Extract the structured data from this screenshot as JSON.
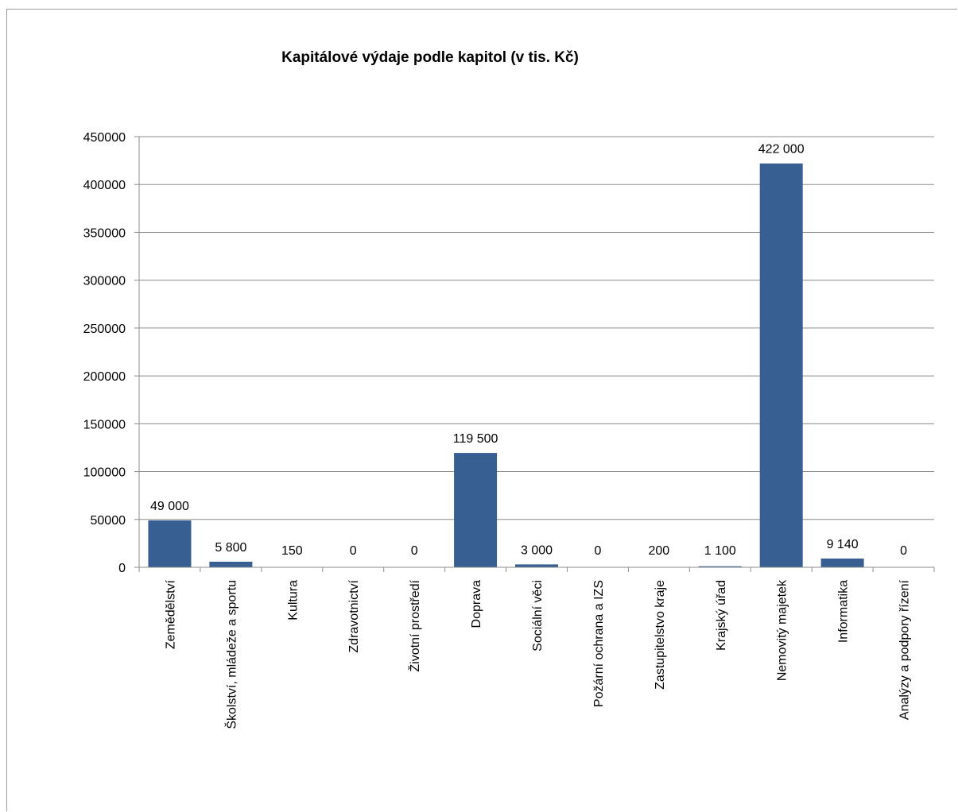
{
  "chart_data": {
    "type": "bar",
    "title": "Kapitálové výdaje podle kapitol (v tis. Kč)",
    "xlabel": "",
    "ylabel": "",
    "ylim": [
      0,
      450000
    ],
    "yticks": [
      "0",
      "50000",
      "100000",
      "150000",
      "200000",
      "250000",
      "300000",
      "350000",
      "400000",
      "450000"
    ],
    "grid": true,
    "legend": "none",
    "categories": [
      "Zemědělství",
      "Školství, mládeže a sportu",
      "Kultura",
      "Zdravotnictví",
      "Životní prostředí",
      "Doprava",
      "Sociální věci",
      "Požární ochrana a IZS",
      "Zastupitelstvo kraje",
      "Krajský úřad",
      "Nemovitý majetek",
      "Informatika",
      "Analýzy a podpory řízení"
    ],
    "values": [
      49000,
      5800,
      150,
      0,
      0,
      119500,
      3000,
      0,
      200,
      1100,
      422000,
      9140,
      0
    ],
    "data_labels": [
      "49 000",
      "5 800",
      "150",
      "0",
      "0",
      "119 500",
      "3 000",
      "0",
      "200",
      "1 100",
      "422 000",
      "9 140",
      "0"
    ],
    "bar_color": "#375f91"
  }
}
